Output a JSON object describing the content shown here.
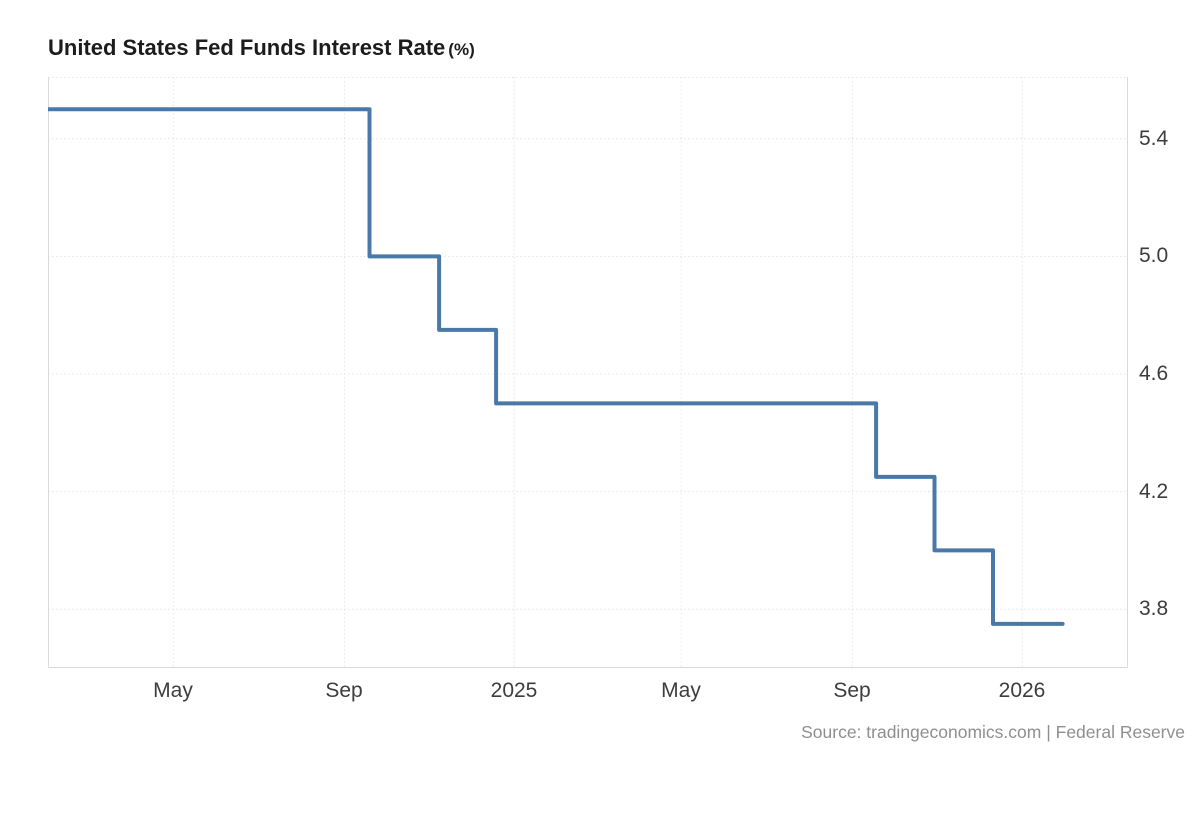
{
  "page": {
    "title": "United States Fed Funds Interest Rate",
    "title_unit": "(%)",
    "source_note": "Source: tradingeconomics.com | Federal Reserve"
  },
  "colors": {
    "line": "#4a79a8",
    "grid": "#e4e4e4",
    "frame": "#d9d9d9",
    "axis_text": "#3d3d3d",
    "title_text": "#1c1c1c",
    "source_text": "#8f8f8f",
    "background": "#ffffff"
  },
  "chart_data": {
    "type": "line",
    "step": "after",
    "title": "United States Fed Funds Interest Rate (%)",
    "xlabel": "",
    "ylabel": "",
    "grid": true,
    "legend": "none",
    "line_color": "#4a79a8",
    "line_width": 4,
    "x_domain": [
      "2024-02-01",
      "2026-03-18"
    ],
    "y_domain": [
      3.6,
      5.61
    ],
    "y_ticks": [
      5.4,
      5.0,
      4.6,
      4.2,
      3.8
    ],
    "x_ticks": [
      {
        "date": "2024-05-01",
        "label": "May"
      },
      {
        "date": "2024-09-01",
        "label": "Sep"
      },
      {
        "date": "2025-01-01",
        "label": "2025"
      },
      {
        "date": "2025-05-01",
        "label": "May"
      },
      {
        "date": "2025-09-01",
        "label": "Sep"
      },
      {
        "date": "2026-01-01",
        "label": "2026"
      }
    ],
    "series": [
      {
        "name": "Fed Funds Interest Rate (%)",
        "points": [
          {
            "date": "2024-02-01",
            "value": 5.5
          },
          {
            "date": "2024-09-19",
            "value": 5.0
          },
          {
            "date": "2024-11-08",
            "value": 4.75
          },
          {
            "date": "2024-12-19",
            "value": 4.5
          },
          {
            "date": "2025-09-18",
            "value": 4.25
          },
          {
            "date": "2025-10-30",
            "value": 4.0
          },
          {
            "date": "2025-12-11",
            "value": 3.75
          },
          {
            "date": "2026-01-30",
            "value": 3.75
          }
        ]
      }
    ]
  }
}
